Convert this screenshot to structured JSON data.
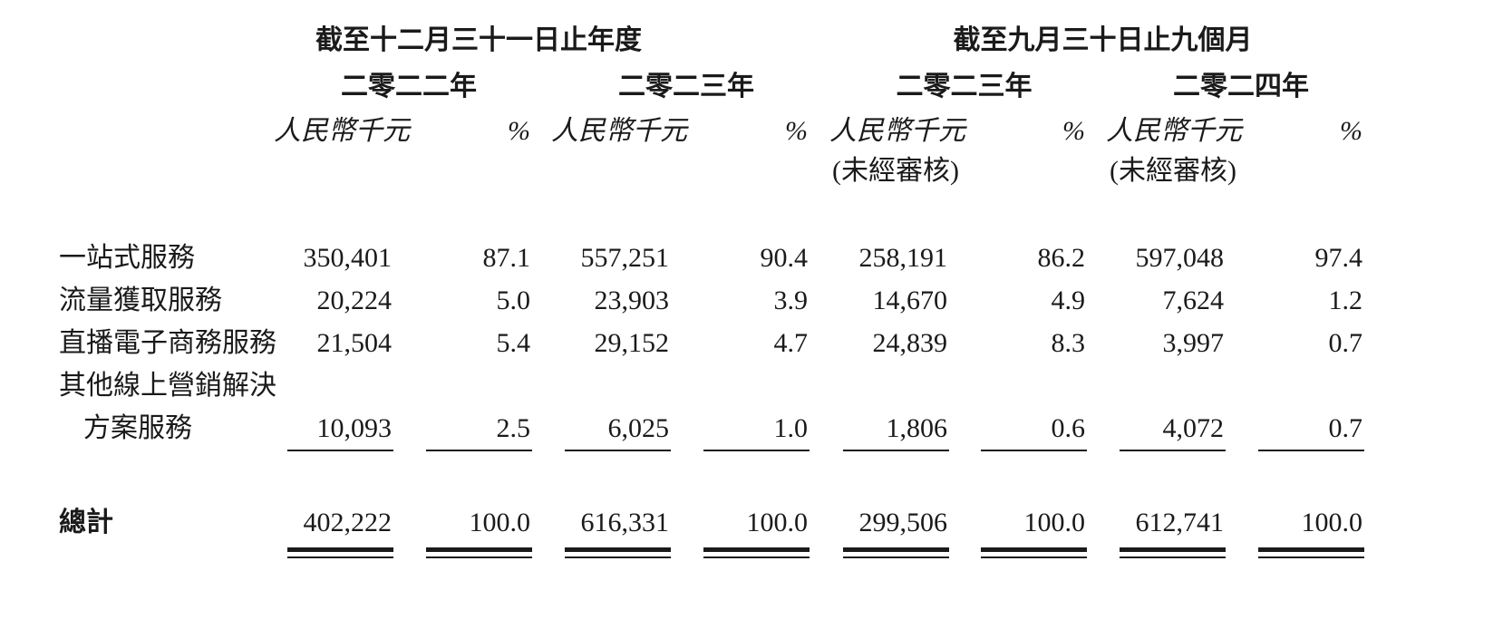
{
  "header": {
    "group_titles": [
      "截至十二月三十一日止年度",
      "截至九月三十日止九個月"
    ],
    "years": [
      "二零二二年",
      "二零二三年",
      "二零二三年",
      "二零二四年"
    ],
    "unit_amount": "人民幣千元",
    "unit_percent": "%",
    "unaudited": "(未經審核)"
  },
  "rows": [
    {
      "label": "一站式服務",
      "values": [
        "350,401",
        "87.1",
        "557,251",
        "90.4",
        "258,191",
        "86.2",
        "597,048",
        "97.4"
      ]
    },
    {
      "label": "流量獲取服務",
      "values": [
        "20,224",
        "5.0",
        "23,903",
        "3.9",
        "14,670",
        "4.9",
        "7,624",
        "1.2"
      ]
    },
    {
      "label": "直播電子商務服務",
      "values": [
        "21,504",
        "5.4",
        "29,152",
        "4.7",
        "24,839",
        "8.3",
        "3,997",
        "0.7"
      ]
    },
    {
      "label": "其他線上營銷解決",
      "label_cont": "方案服務",
      "values": [
        "10,093",
        "2.5",
        "6,025",
        "1.0",
        "1,806",
        "0.6",
        "4,072",
        "0.7"
      ]
    }
  ],
  "total": {
    "label": "總計",
    "values": [
      "402,222",
      "100.0",
      "616,331",
      "100.0",
      "299,506",
      "100.0",
      "612,741",
      "100.0"
    ]
  }
}
